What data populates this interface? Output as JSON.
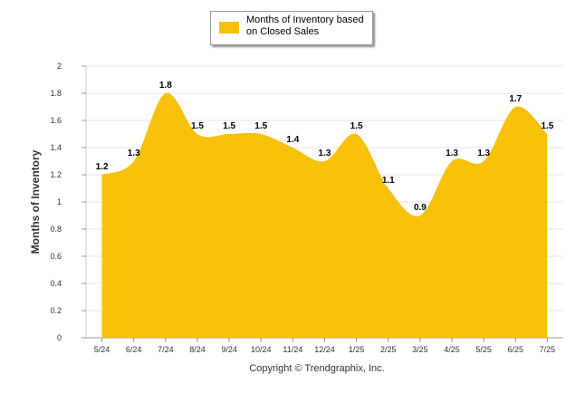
{
  "chart_data": {
    "type": "area",
    "categories": [
      "5/24",
      "6/24",
      "7/24",
      "8/24",
      "9/24",
      "10/24",
      "11/24",
      "12/24",
      "1/25",
      "2/25",
      "3/25",
      "4/25",
      "5/25",
      "6/25",
      "7/25"
    ],
    "series": [
      {
        "name": "Months of Inventory based on Closed Sales",
        "values": [
          1.2,
          1.3,
          1.8,
          1.5,
          1.5,
          1.5,
          1.4,
          1.3,
          1.5,
          1.1,
          0.9,
          1.3,
          1.3,
          1.7,
          1.5
        ]
      }
    ],
    "data_labels": [
      "1.2",
      "1.3",
      "1.8",
      "1.5",
      "1.5",
      "1.5",
      "1.4",
      "1.3",
      "1.5",
      "1.1",
      "0.9",
      "1.3",
      "1.3",
      "1.7",
      "1.5"
    ],
    "ylabel": "Months of Inventory",
    "ylim": [
      0,
      2
    ],
    "yticks": [
      "0",
      "0.2",
      "0.4",
      "0.6",
      "0.8",
      "1",
      "1.2",
      "1.4",
      "1.6",
      "1.8",
      "2"
    ],
    "grid": true,
    "legend_position": "top-center",
    "color": "#F7C10A"
  },
  "legend": {
    "label": "Months of Inventory based on Closed Sales"
  },
  "footer": {
    "copyright": "Copyright © Trendgraphix, Inc."
  }
}
